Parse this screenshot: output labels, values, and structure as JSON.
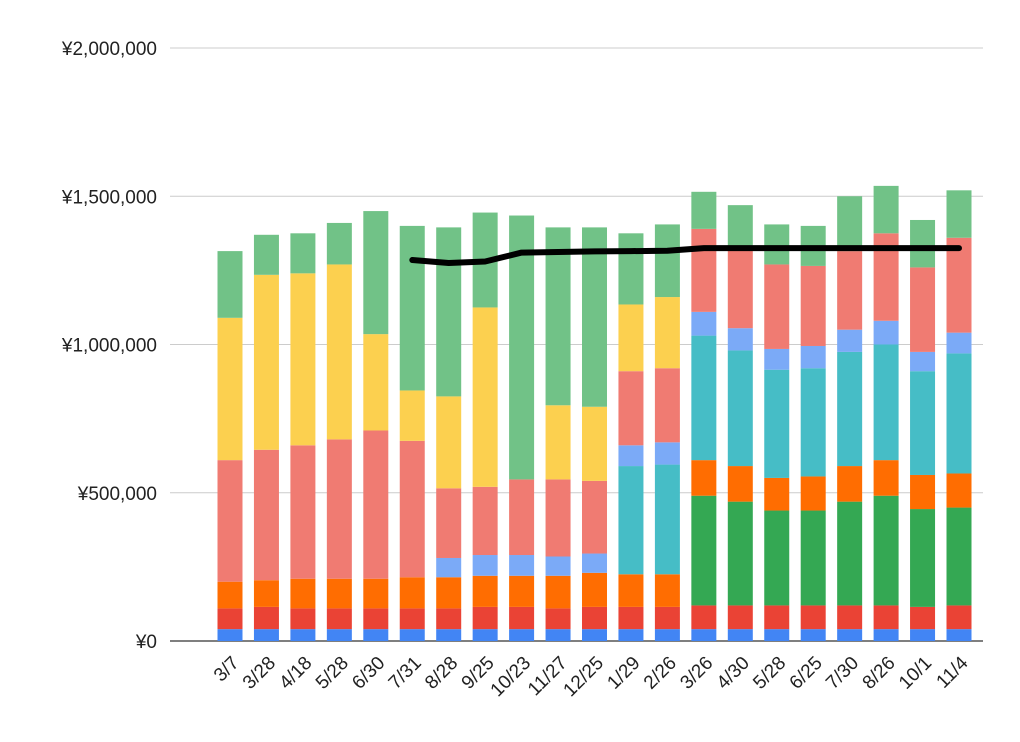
{
  "chart_data": {
    "type": "bar",
    "stacked": true,
    "categories": [
      "3/7",
      "3/28",
      "4/18",
      "5/28",
      "6/30",
      "7/31",
      "8/28",
      "9/25",
      "10/23",
      "11/27",
      "12/25",
      "1/29",
      "2/26",
      "3/26",
      "4/30",
      "5/28",
      "6/25",
      "7/30",
      "8/26",
      "10/1",
      "11/4"
    ],
    "ylim": [
      0,
      2000000
    ],
    "yticks": [
      0,
      500000,
      1000000,
      1500000,
      2000000
    ],
    "ytick_labels": [
      "¥0",
      "¥500,000",
      "¥1,000,000",
      "¥1,500,000",
      "¥2,000,000"
    ],
    "grid": true,
    "legend": "none",
    "series": [
      {
        "color": "#4285f4",
        "values": [
          40000,
          40000,
          40000,
          40000,
          40000,
          40000,
          40000,
          40000,
          40000,
          40000,
          40000,
          40000,
          40000,
          40000,
          40000,
          40000,
          40000,
          40000,
          40000,
          40000,
          40000
        ]
      },
      {
        "color": "#ea4335",
        "values": [
          70000,
          75000,
          70000,
          70000,
          70000,
          70000,
          70000,
          75000,
          75000,
          70000,
          75000,
          75000,
          75000,
          80000,
          80000,
          80000,
          80000,
          80000,
          80000,
          75000,
          80000
        ]
      },
      {
        "color": "#34a853",
        "values": [
          0,
          0,
          0,
          0,
          0,
          0,
          0,
          0,
          0,
          0,
          0,
          0,
          0,
          370000,
          350000,
          320000,
          320000,
          350000,
          370000,
          330000,
          330000
        ]
      },
      {
        "color": "#ff6d01",
        "values": [
          90000,
          90000,
          100000,
          100000,
          100000,
          105000,
          105000,
          105000,
          105000,
          110000,
          115000,
          110000,
          110000,
          120000,
          120000,
          110000,
          115000,
          120000,
          120000,
          115000,
          115000
        ]
      },
      {
        "color": "#46bdc6",
        "values": [
          0,
          0,
          0,
          0,
          0,
          0,
          0,
          0,
          0,
          0,
          0,
          365000,
          370000,
          420000,
          390000,
          365000,
          365000,
          385000,
          390000,
          350000,
          405000
        ]
      },
      {
        "color": "#7baaf7",
        "values": [
          0,
          0,
          0,
          0,
          0,
          0,
          65000,
          70000,
          70000,
          65000,
          65000,
          70000,
          75000,
          80000,
          75000,
          70000,
          75000,
          75000,
          80000,
          65000,
          70000
        ]
      },
      {
        "color": "#f07b72",
        "values": [
          410000,
          440000,
          450000,
          470000,
          500000,
          460000,
          235000,
          230000,
          255000,
          260000,
          245000,
          250000,
          250000,
          280000,
          265000,
          285000,
          270000,
          265000,
          295000,
          285000,
          320000
        ]
      },
      {
        "color": "#fcd04f",
        "values": [
          480000,
          590000,
          580000,
          590000,
          325000,
          170000,
          310000,
          605000,
          0,
          250000,
          250000,
          225000,
          240000,
          0,
          0,
          0,
          0,
          0,
          0,
          0,
          0
        ]
      },
      {
        "color": "#71c287",
        "values": [
          225000,
          135000,
          135000,
          140000,
          415000,
          555000,
          570000,
          320000,
          890000,
          600000,
          605000,
          240000,
          245000,
          125000,
          150000,
          135000,
          135000,
          185000,
          160000,
          160000,
          160000
        ]
      }
    ],
    "line_series": {
      "color": "#000000",
      "start_index": 5,
      "values": [
        1285000,
        1275000,
        1280000,
        1310000,
        1312000,
        1314000,
        1315000,
        1316000,
        1325000,
        1325000,
        1325000,
        1325000,
        1325000,
        1325000,
        1325000,
        1325000
      ]
    }
  }
}
